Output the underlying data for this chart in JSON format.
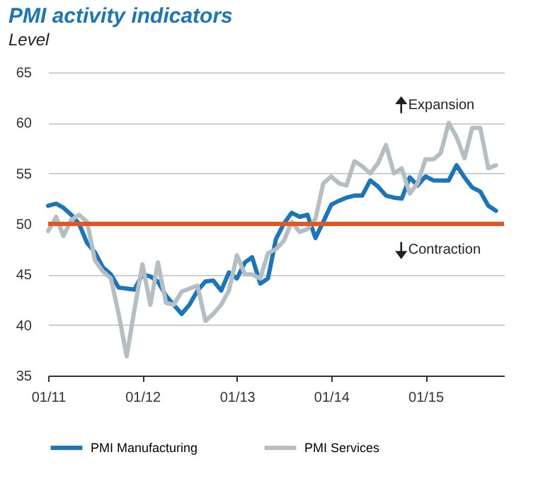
{
  "chart_data": {
    "type": "line",
    "title": "PMI activity indicators",
    "subtitle": "Level",
    "x": [
      "2011-01",
      "2011-02",
      "2011-03",
      "2011-04",
      "2011-05",
      "2011-06",
      "2011-07",
      "2011-08",
      "2011-09",
      "2011-10",
      "2011-11",
      "2011-12",
      "2012-01",
      "2012-02",
      "2012-03",
      "2012-04",
      "2012-05",
      "2012-06",
      "2012-07",
      "2012-08",
      "2012-09",
      "2012-10",
      "2012-11",
      "2012-12",
      "2013-01",
      "2013-02",
      "2013-03",
      "2013-04",
      "2013-05",
      "2013-06",
      "2013-07",
      "2013-08",
      "2013-09",
      "2013-10",
      "2013-11",
      "2013-12",
      "2014-01",
      "2014-02",
      "2014-03",
      "2014-04",
      "2014-05",
      "2014-06",
      "2014-07",
      "2014-08",
      "2014-09",
      "2014-10",
      "2014-11",
      "2014-12",
      "2015-01",
      "2015-02",
      "2015-03",
      "2015-04",
      "2015-05",
      "2015-06",
      "2015-07",
      "2015-08",
      "2015-09",
      "2015-10"
    ],
    "series": [
      {
        "name": "PMI Manufacturing",
        "color": "#1a75bb",
        "values": [
          51.8,
          52.0,
          51.6,
          50.9,
          50.0,
          48.1,
          47.2,
          45.7,
          45.0,
          43.7,
          43.6,
          43.5,
          45.0,
          44.8,
          44.3,
          42.9,
          42.0,
          41.1,
          42.0,
          43.4,
          44.3,
          44.4,
          43.4,
          45.2,
          44.6,
          46.2,
          46.7,
          44.1,
          44.6,
          48.5,
          50.0,
          51.1,
          50.7,
          50.9,
          48.6,
          50.2,
          51.9,
          52.3,
          52.6,
          52.8,
          52.8,
          54.3,
          53.7,
          52.8,
          52.6,
          52.5,
          54.6,
          53.8,
          54.7,
          54.3,
          54.3,
          54.3,
          55.8,
          54.6,
          53.6,
          53.2,
          51.8,
          51.3
        ]
      },
      {
        "name": "PMI Services",
        "color": "#b4bec3",
        "values": [
          49.3,
          50.7,
          48.8,
          50.4,
          50.9,
          50.2,
          46.4,
          45.3,
          44.6,
          41.1,
          36.9,
          41.5,
          46.0,
          42.0,
          46.2,
          42.2,
          42.0,
          43.3,
          43.6,
          43.9,
          40.4,
          41.1,
          42.0,
          43.4,
          46.9,
          45.0,
          45.0,
          44.6,
          47.1,
          47.5,
          48.3,
          50.2,
          49.2,
          49.5,
          50.5,
          54.0,
          54.7,
          54.0,
          53.8,
          56.2,
          55.7,
          55.0,
          56.0,
          57.8,
          55.0,
          55.5,
          53.0,
          54.0,
          56.4,
          56.4,
          57.0,
          60.0,
          58.6,
          56.5,
          59.5,
          59.5,
          55.5,
          55.8
        ]
      }
    ],
    "xlim": [
      "2011-01",
      "2015-11"
    ],
    "xticks": [
      {
        "value": "2011-01",
        "label": "01/11"
      },
      {
        "value": "2012-01",
        "label": "01/12"
      },
      {
        "value": "2013-01",
        "label": "01/13"
      },
      {
        "value": "2014-01",
        "label": "01/14"
      },
      {
        "value": "2015-01",
        "label": "01/15"
      }
    ],
    "ylim": [
      35,
      65
    ],
    "yticks": [
      35,
      40,
      45,
      50,
      55,
      60,
      65
    ],
    "grid": "y",
    "legend": "bottom",
    "line_style": "solid",
    "ref_lines": [
      {
        "axis": "y",
        "value": 50,
        "color": "#e8541e"
      }
    ],
    "annotations": [
      "Expansion",
      "Contraction"
    ]
  }
}
